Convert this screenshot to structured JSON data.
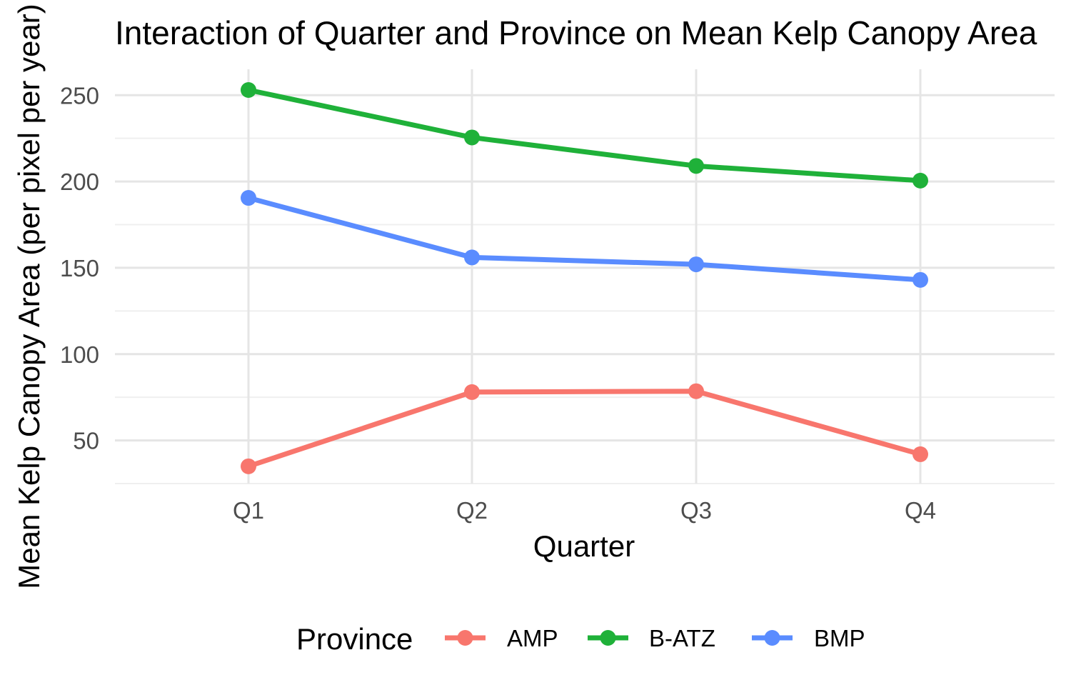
{
  "chart_data": {
    "type": "line",
    "title": "Interaction of Quarter and Province on Mean Kelp Canopy Area",
    "xlabel": "Quarter",
    "ylabel": "Mean Kelp Canopy Area (per pixel per year)",
    "categories": [
      "Q1",
      "Q2",
      "Q3",
      "Q4"
    ],
    "ylim": [
      25,
      265
    ],
    "yticks": [
      50,
      100,
      150,
      200,
      250
    ],
    "grid": true,
    "legend": {
      "title": "Province",
      "placement": "bottom"
    },
    "series": [
      {
        "name": "AMP",
        "color": "#F8766D",
        "values": [
          35,
          78,
          78.5,
          42
        ]
      },
      {
        "name": "B-ATZ",
        "color": "#1FB139",
        "values": [
          253,
          225.5,
          209,
          200.5
        ]
      },
      {
        "name": "BMP",
        "color": "#5A8CFF",
        "values": [
          190.5,
          156,
          152,
          143
        ]
      }
    ]
  }
}
